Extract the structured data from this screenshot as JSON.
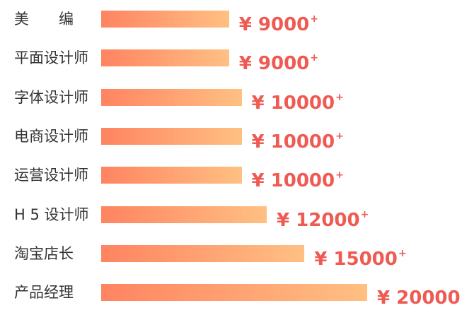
{
  "chart_data": {
    "type": "bar",
    "orientation": "horizontal",
    "title": "",
    "xlabel": "",
    "ylabel": "",
    "categories": [
      "美　　编",
      "平面设计师",
      "字体设计师",
      "电商设计师",
      "运营设计师",
      "H 5 设计师",
      "淘宝店长",
      "产品经理"
    ],
    "values": [
      9000,
      9000,
      10000,
      10000,
      10000,
      12000,
      15000,
      20000
    ],
    "value_prefix": "¥",
    "value_suffix": "+",
    "xlim": [
      0,
      20000
    ],
    "grid": false,
    "legend": "none",
    "colors": {
      "bar_start": "#ff8461",
      "bar_end": "#ffc082",
      "value_text": "#ef5a52",
      "label_text": "#333333"
    }
  }
}
